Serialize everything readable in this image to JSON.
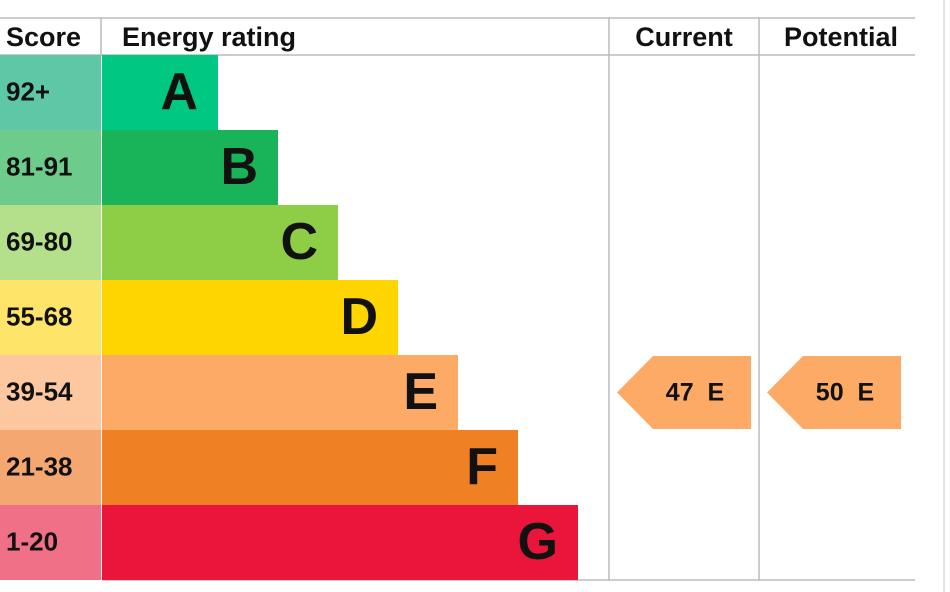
{
  "headers": {
    "score": "Score",
    "rating": "Energy rating",
    "current": "Current",
    "potential": "Potential"
  },
  "bands": [
    {
      "score": "92+",
      "letter": "A",
      "color": "#00c781",
      "score_color": "#5ec8a6"
    },
    {
      "score": "81-91",
      "letter": "B",
      "color": "#19b459",
      "score_color": "#6dcb8c"
    },
    {
      "score": "69-80",
      "letter": "C",
      "color": "#8dce46",
      "score_color": "#b4e08c"
    },
    {
      "score": "55-68",
      "letter": "D",
      "color": "#ffd500",
      "score_color": "#ffe46a"
    },
    {
      "score": "39-54",
      "letter": "E",
      "color": "#fcaa65",
      "score_color": "#fdc8a0"
    },
    {
      "score": "21-38",
      "letter": "F",
      "color": "#ef8023",
      "score_color": "#f4a770"
    },
    {
      "score": "1-20",
      "letter": "G",
      "color": "#e9153b",
      "score_color": "#f07088"
    }
  ],
  "current": {
    "value": 47,
    "letter": "E"
  },
  "potential": {
    "value": 50,
    "letter": "E"
  }
}
